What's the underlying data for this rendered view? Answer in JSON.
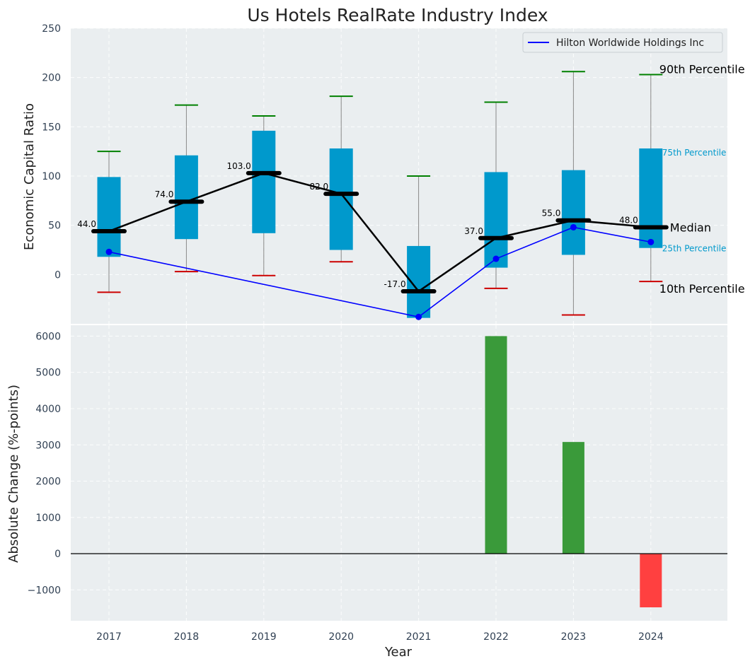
{
  "chart_data": [
    {
      "type": "box",
      "title": "Us Hotels RealRate Industry Index",
      "ylabel": "Economic Capital Ratio",
      "ylim": [
        -50,
        250
      ],
      "yticks": [
        0,
        50,
        100,
        150,
        200,
        250
      ],
      "categories": [
        "2017",
        "2018",
        "2019",
        "2020",
        "2021",
        "2022",
        "2023",
        "2024"
      ],
      "p10": [
        -18,
        3,
        -1,
        13,
        null,
        -14,
        -41,
        -7
      ],
      "p25": [
        18,
        36,
        42,
        25,
        -44,
        7,
        20,
        27
      ],
      "median": [
        44,
        74,
        103,
        82,
        -17,
        37,
        55,
        48
      ],
      "p75": [
        99,
        121,
        146,
        128,
        29,
        104,
        106,
        128
      ],
      "p90": [
        125,
        172,
        161,
        181,
        100,
        175,
        206,
        203
      ],
      "median_labels": [
        "44.0",
        "74.0",
        "103.0",
        "82.0",
        "-17.0",
        "37.0",
        "55.0",
        "48.0"
      ],
      "company_series": {
        "name": "Hilton Worldwide Holdings Inc",
        "values": [
          23,
          null,
          null,
          null,
          -43,
          16,
          48,
          33
        ]
      },
      "annotations": {
        "p90": "90th Percentile",
        "p75": "75th Percentile",
        "median": "Median",
        "p25": "25th Percentile",
        "p10": "10th Percentile"
      },
      "legend_position": "top-right",
      "grid": true
    },
    {
      "type": "bar",
      "xlabel": "Year",
      "ylabel": "Absolute Change (%-points)",
      "ylim": [
        -1850,
        6300
      ],
      "yticks": [
        -1000,
        0,
        1000,
        2000,
        3000,
        4000,
        5000,
        6000
      ],
      "ytick_labels": [
        "−1000",
        "0",
        "1000",
        "2000",
        "3000",
        "4000",
        "5000",
        "6000"
      ],
      "categories": [
        "2017",
        "2018",
        "2019",
        "2020",
        "2021",
        "2022",
        "2023",
        "2024"
      ],
      "values": [
        0,
        0,
        0,
        0,
        0,
        6000,
        3080,
        -1480
      ],
      "grid": true
    }
  ],
  "colors": {
    "box_fill": "#0099cc",
    "whisker_high": "#008000",
    "whisker_low": "#cc0000",
    "median_line": "#000000",
    "company_line": "#0000ff",
    "annotation_blue": "#0099cc",
    "bar_positive": "#3a9a3a",
    "bar_negative": "#ff4040",
    "panel_bg": "#eaeef0"
  }
}
